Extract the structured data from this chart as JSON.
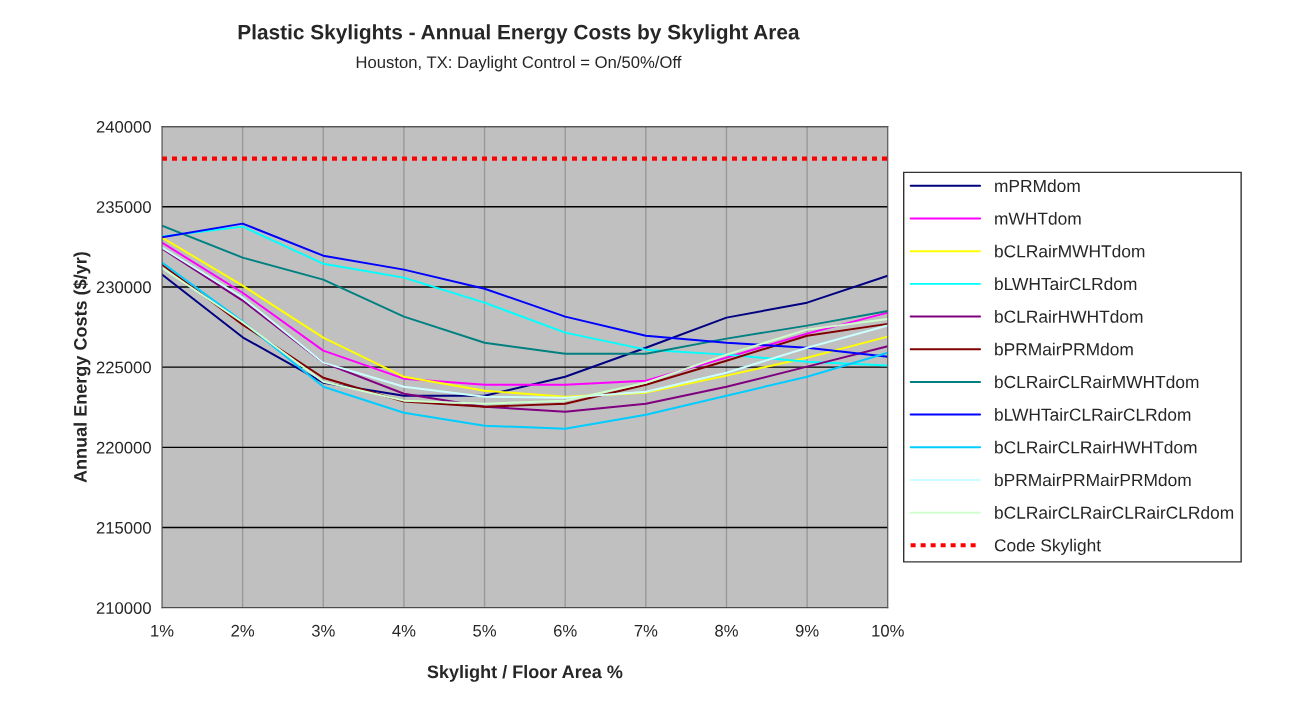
{
  "chart_data": {
    "type": "line",
    "title": "Plastic Skylights - Annual Energy Costs by Skylight Area",
    "subtitle": "Houston, TX: Daylight Control = On/50%/Off",
    "xlabel": "Skylight / Floor Area %",
    "ylabel": "Annual Energy Costs ($/yr)",
    "categories": [
      "1%",
      "2%",
      "3%",
      "4%",
      "5%",
      "6%",
      "7%",
      "8%",
      "9%",
      "10%"
    ],
    "ylim": [
      210000,
      240000
    ],
    "yticks": [
      210000,
      215000,
      220000,
      225000,
      230000,
      235000,
      240000
    ],
    "grid": true,
    "legend": "right",
    "marker": "none",
    "series": [
      {
        "name": "mPRMdom",
        "color": "#000080",
        "values": [
          230770,
          226860,
          224030,
          223220,
          223220,
          224400,
          226210,
          228090,
          229020,
          230700
        ]
      },
      {
        "name": "mWHTdom",
        "color": "#ff00ff",
        "values": [
          232760,
          229640,
          226030,
          224280,
          223900,
          223900,
          224150,
          225590,
          227090,
          228400
        ]
      },
      {
        "name": "bCLRairMWHTdom",
        "color": "#ffff00",
        "values": [
          233080,
          230080,
          226840,
          224400,
          223530,
          223160,
          223410,
          224470,
          225590,
          226900
        ]
      },
      {
        "name": "bLWHTairCLRdom",
        "color": "#00ffff",
        "values": [
          233140,
          233760,
          231450,
          230580,
          229020,
          227150,
          226090,
          225780,
          225340,
          225100
        ]
      },
      {
        "name": "bCLRairHWHTdom",
        "color": "#800080",
        "values": [
          232390,
          229150,
          225280,
          223340,
          222530,
          222220,
          222720,
          223780,
          225030,
          226300
        ]
      },
      {
        "name": "bPRMairPRMdom",
        "color": "#800000",
        "values": [
          231390,
          227650,
          224340,
          222850,
          222530,
          222720,
          223900,
          225400,
          226960,
          227700
        ]
      },
      {
        "name": "bCLRairCLRairMWHTdom",
        "color": "#008080",
        "values": [
          233820,
          231830,
          230460,
          228150,
          226520,
          225840,
          225840,
          226780,
          227590,
          228500
        ]
      },
      {
        "name": "bLWHTairCLRairCLRdom",
        "color": "#0000ff",
        "values": [
          233100,
          233950,
          231950,
          231080,
          229890,
          228150,
          226960,
          226520,
          226210,
          225650
        ]
      },
      {
        "name": "bCLRairCLRairHWHTdom",
        "color": "#00ccff",
        "values": [
          231520,
          227840,
          223780,
          222160,
          221350,
          221160,
          222030,
          223220,
          224400,
          225900
        ]
      },
      {
        "name": "bPRMairPRMairPRMdom",
        "color": "#ccffff",
        "values": [
          232450,
          229330,
          225280,
          223780,
          223160,
          223090,
          223470,
          224650,
          226210,
          227600
        ]
      },
      {
        "name": "bCLRairCLRairCLRairCLRdom",
        "color": "#ccffcc",
        "values": [
          231200,
          227800,
          224090,
          222910,
          222720,
          222910,
          224030,
          225780,
          227340,
          228000
        ]
      },
      {
        "name": "Code Skylight",
        "color": "#ff0000",
        "line_style": "dotted",
        "values": [
          238000,
          238000,
          238000,
          238000,
          238000,
          238000,
          238000,
          238000,
          238000,
          238000
        ]
      }
    ]
  }
}
